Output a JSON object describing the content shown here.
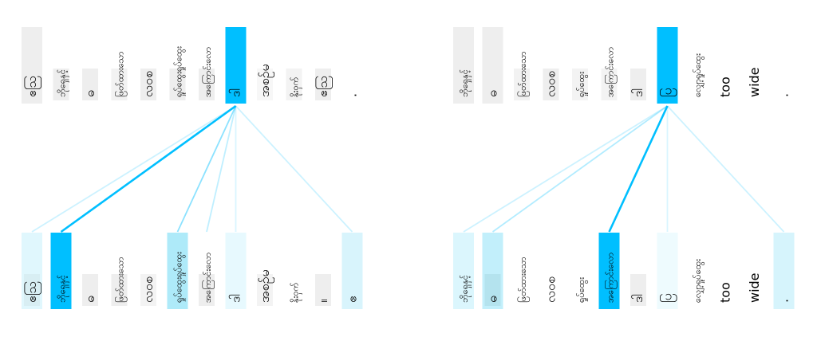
{
  "panels": [
    {
      "id": "left",
      "top_tokens": [
        {
          "text": "ဧဩ",
          "bg": "#eeeeee",
          "fill": "#eeeeee"
        },
        {
          "text": "ဘိုရှေနှင့်",
          "bg": "#ffffff",
          "fill": "#eeeeee"
        },
        {
          "text": "ဓ",
          "bg": "#ffffff",
          "fill": "#eeeeee"
        },
        {
          "text": "ဖြတ်ထားသော",
          "bg": "#ffffff",
          "fill": "#f2f2f2"
        },
        {
          "text": "လဝစ",
          "bg": "#ffffff",
          "fill": "#eeeeee"
        },
        {
          "text": "ရှုပ်ထွေးရှုပ်ထွေး",
          "bg": "#ffffff",
          "fill": "#eeeeee"
        },
        {
          "text": "အကြောင်းလော",
          "bg": "#ffffff",
          "fill": "#eeeeee"
        },
        {
          "text": "ဒါ",
          "bg": "#00bfff",
          "fill": "#00bfff"
        },
        {
          "text": "အစဉ်မ",
          "bg": "#ffffff",
          "fill": "#f7f7f7"
        },
        {
          "text": "နိုးဝှက်",
          "bg": "#ffffff",
          "fill": "#f3f3f3"
        },
        {
          "text": "ဧဩ",
          "bg": "#ffffff",
          "fill": "#eeeeee"
        },
        {
          "text": ".",
          "bg": "#ffffff",
          "fill": "#ffffff"
        }
      ],
      "bottom_tokens": [
        {
          "text": "ဧဩ",
          "bg": "#e0f7fd",
          "fill": "#d8eef3"
        },
        {
          "text": "ဘိုရှေနှင့်",
          "bg": "#00bfff",
          "fill": "#00bfff"
        },
        {
          "text": "ဓ",
          "bg": "#ffffff",
          "fill": "#eeeeee"
        },
        {
          "text": "ဖြတ်ထားသော",
          "bg": "#ffffff",
          "fill": "#eeeeee"
        },
        {
          "text": "လဝစ",
          "bg": "#ffffff",
          "fill": "#f3f3f3"
        },
        {
          "text": "ရှုပ်ထွေးရှုပ်ထွေး",
          "bg": "#aeeaf9",
          "fill": "#aeeaf9"
        },
        {
          "text": "အကြောင်းလော",
          "bg": "#ffffff",
          "fill": "#eeeeee"
        },
        {
          "text": "ဒါ",
          "bg": "#e7f9fe",
          "fill": "#e7f9fe"
        },
        {
          "text": "အစဉ်မ",
          "bg": "#ffffff",
          "fill": "#f3f3f3"
        },
        {
          "text": "နိုးဝှက်",
          "bg": "#ffffff",
          "fill": "#ffffff"
        },
        {
          "text": "။",
          "bg": "#ffffff",
          "fill": "#eeeeee"
        },
        {
          "text": "ဧ",
          "bg": "#d8f4fc",
          "fill": "#d8f4fc"
        }
      ],
      "links": [
        {
          "top": 7,
          "bottom": 0,
          "weight": 0.2
        },
        {
          "top": 7,
          "bottom": 1,
          "weight": 1.0
        },
        {
          "top": 7,
          "bottom": 5,
          "weight": 0.45
        },
        {
          "top": 7,
          "bottom": 6,
          "weight": 0.25
        },
        {
          "top": 7,
          "bottom": 7,
          "weight": 0.15
        },
        {
          "top": 7,
          "bottom": 11,
          "weight": 0.2
        }
      ]
    },
    {
      "id": "right",
      "top_tokens": [
        {
          "text": "ဘိုရှေနှင့်",
          "bg": "#eeeeee",
          "fill": "#eeeeee"
        },
        {
          "text": "ဓ",
          "bg": "#eeeeee",
          "fill": "#eeeeee"
        },
        {
          "text": "ဖြတ်ထားသော",
          "bg": "#ffffff",
          "fill": "#f2f2f2"
        },
        {
          "text": "လဝစ",
          "bg": "#ffffff",
          "fill": "#eeeeee"
        },
        {
          "text": "ရှုပ်ထွေး",
          "bg": "#ffffff",
          "fill": "#f3f3f3"
        },
        {
          "text": "အကြောင်းလော",
          "bg": "#ffffff",
          "fill": "#f3f3f3"
        },
        {
          "text": "ဒါ",
          "bg": "#ffffff",
          "fill": "#eeeeee"
        },
        {
          "text": "ပြ",
          "bg": "#00bfff",
          "fill": "#00bfff"
        },
        {
          "text": "လျှော့ရှုပ်ထွေး",
          "bg": "#ffffff",
          "fill": "#ffffff"
        },
        {
          "text": "too",
          "bg": "#ffffff",
          "fill": "#ffffff"
        },
        {
          "text": "wide",
          "bg": "#ffffff",
          "fill": "#ffffff"
        },
        {
          "text": ".",
          "bg": "#ffffff",
          "fill": "#ffffff"
        }
      ],
      "bottom_tokens": [
        {
          "text": "ဘိုရှေနှင့်",
          "bg": "#dbf6fd",
          "fill": "#dbf6fd"
        },
        {
          "text": "ဓ",
          "bg": "#c2effb",
          "fill": "#b4e3ee"
        },
        {
          "text": "ဖြတ်ထားသော",
          "bg": "#ffffff",
          "fill": "#ffffff"
        },
        {
          "text": "လဝစ",
          "bg": "#ffffff",
          "fill": "#ffffff"
        },
        {
          "text": "ရှုပ်ထွေး",
          "bg": "#ffffff",
          "fill": "#ffffff"
        },
        {
          "text": "အကြောင်းလော",
          "bg": "#00bfff",
          "fill": "#00bfff"
        },
        {
          "text": "ဒါ",
          "bg": "#ffffff",
          "fill": "#eeeeee"
        },
        {
          "text": "ပြ",
          "bg": "#eefbfe",
          "fill": "#eefbfe"
        },
        {
          "text": "လျှော့ရှုပ်ထွေး",
          "bg": "#ffffff",
          "fill": "#ffffff"
        },
        {
          "text": "too",
          "bg": "#ffffff",
          "fill": "#ffffff"
        },
        {
          "text": "wide",
          "bg": "#ffffff",
          "fill": "#ffffff"
        },
        {
          "text": ".",
          "bg": "#d6f4fc",
          "fill": "#d6f4fc"
        }
      ],
      "links": [
        {
          "top": 7,
          "bottom": 0,
          "weight": 0.2
        },
        {
          "top": 7,
          "bottom": 1,
          "weight": 0.3
        },
        {
          "top": 7,
          "bottom": 5,
          "weight": 1.0
        },
        {
          "top": 7,
          "bottom": 7,
          "weight": 0.15
        },
        {
          "top": 7,
          "bottom": 11,
          "weight": 0.2
        }
      ]
    }
  ],
  "colors": {
    "accent": "#00bfff",
    "link": "#00bfff",
    "text": "#000000"
  }
}
